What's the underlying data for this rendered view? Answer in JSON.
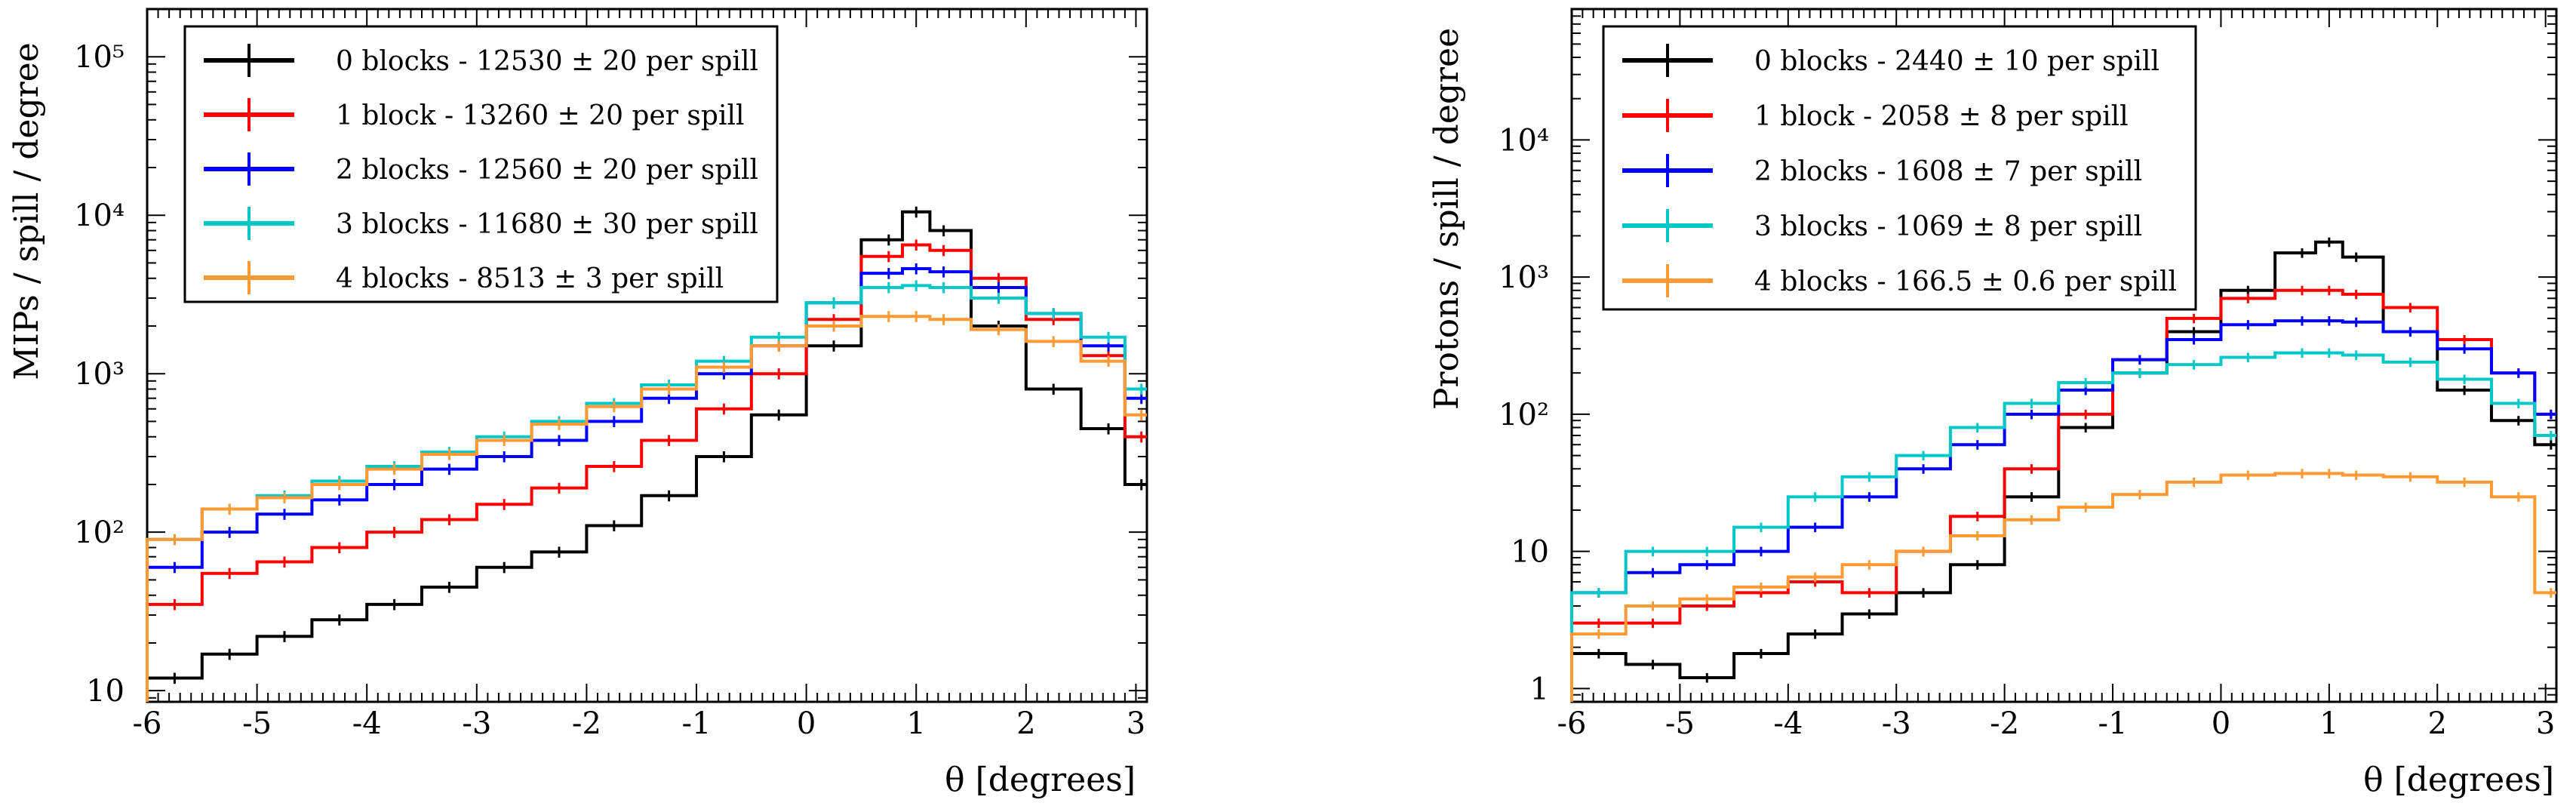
{
  "chart_data": [
    {
      "type": "line",
      "style": "step-histogram",
      "title": "",
      "xlabel": "θ [degrees]",
      "ylabel": "MIPs / spill / degree",
      "xlim": [
        -6,
        3.1
      ],
      "ylim": [
        8.5,
        200000
      ],
      "yscale": "log",
      "x_ticks": [
        -6,
        -5,
        -4,
        -3,
        -2,
        -1,
        0,
        1,
        2,
        3
      ],
      "y_ticks": [
        {
          "value": 10,
          "label": "10"
        },
        {
          "value": 100,
          "label": "10²"
        },
        {
          "value": 1000,
          "label": "10³"
        },
        {
          "value": 10000,
          "label": "10⁴"
        },
        {
          "value": 100000,
          "label": "10⁵"
        }
      ],
      "grid": false,
      "legend_position": "top-left",
      "x": [
        -5.75,
        -5.25,
        -4.75,
        -4.25,
        -3.75,
        -3.25,
        -2.75,
        -2.25,
        -1.75,
        -1.25,
        -0.75,
        -0.25,
        0.25,
        0.75,
        1.0,
        1.25,
        1.75,
        2.25,
        2.75,
        3.05
      ],
      "series": [
        {
          "name": "0 blocks - 12530 ± 20 per spill",
          "color": "#000000",
          "values": [
            12,
            17,
            22,
            28,
            35,
            45,
            60,
            75,
            110,
            170,
            300,
            550,
            1500,
            7000,
            10500,
            8000,
            2000,
            800,
            450,
            200
          ]
        },
        {
          "name": "1 block - 13260 ± 20 per spill",
          "color": "#ff0000",
          "values": [
            35,
            55,
            65,
            80,
            100,
            120,
            150,
            190,
            260,
            380,
            600,
            1000,
            2200,
            5500,
            6500,
            6000,
            4000,
            2200,
            1300,
            400
          ]
        },
        {
          "name": "2 blocks - 12560 ± 20 per spill",
          "color": "#0000ff",
          "values": [
            60,
            100,
            130,
            160,
            200,
            250,
            300,
            380,
            500,
            700,
            1000,
            1500,
            2800,
            4300,
            4600,
            4400,
            3500,
            2400,
            1500,
            700
          ]
        },
        {
          "name": "3 blocks - 11680 ± 30 per spill",
          "color": "#00c8c8",
          "values": [
            90,
            140,
            170,
            210,
            260,
            320,
            400,
            500,
            650,
            850,
            1200,
            1700,
            2800,
            3500,
            3600,
            3500,
            3000,
            2400,
            1700,
            800
          ]
        },
        {
          "name": "4 blocks - 8513 ± 3 per spill",
          "color": "#ff9933",
          "values": [
            90,
            140,
            165,
            200,
            250,
            310,
            380,
            480,
            620,
            800,
            1100,
            1500,
            2000,
            2300,
            2300,
            2200,
            1900,
            1600,
            1200,
            550
          ]
        }
      ]
    },
    {
      "type": "line",
      "style": "step-histogram",
      "title": "",
      "xlabel": "θ [degrees]",
      "ylabel": "Protons / spill / degree",
      "xlim": [
        -6,
        3.1
      ],
      "ylim": [
        0.8,
        90000
      ],
      "yscale": "log",
      "x_ticks": [
        -6,
        -5,
        -4,
        -3,
        -2,
        -1,
        0,
        1,
        2,
        3
      ],
      "y_ticks": [
        {
          "value": 1,
          "label": "1"
        },
        {
          "value": 10,
          "label": "10"
        },
        {
          "value": 100,
          "label": "10²"
        },
        {
          "value": 1000,
          "label": "10³"
        },
        {
          "value": 10000,
          "label": "10⁴"
        }
      ],
      "grid": false,
      "legend_position": "top-left",
      "x": [
        -5.75,
        -5.25,
        -4.75,
        -4.25,
        -3.75,
        -3.25,
        -2.75,
        -2.25,
        -1.75,
        -1.25,
        -0.75,
        -0.25,
        0.25,
        0.75,
        1.0,
        1.25,
        1.75,
        2.25,
        2.75,
        3.05
      ],
      "series": [
        {
          "name": "0 blocks - 2440 ± 10 per spill",
          "color": "#000000",
          "values": [
            1.8,
            1.5,
            1.2,
            1.8,
            2.5,
            3.5,
            5,
            8,
            25,
            80,
            200,
            400,
            800,
            1500,
            1800,
            1400,
            400,
            150,
            90,
            60
          ]
        },
        {
          "name": "1 block - 2058 ± 8 per spill",
          "color": "#ff0000",
          "values": [
            3,
            3,
            4,
            5,
            6,
            5,
            10,
            18,
            40,
            100,
            250,
            500,
            700,
            800,
            800,
            750,
            600,
            350,
            200,
            100
          ]
        },
        {
          "name": "2 blocks - 1608 ± 7 per spill",
          "color": "#0000ff",
          "values": [
            5,
            7,
            8,
            10,
            15,
            25,
            40,
            60,
            100,
            150,
            250,
            350,
            450,
            480,
            480,
            470,
            400,
            300,
            200,
            100
          ]
        },
        {
          "name": "3 blocks - 1069 ± 8 per spill",
          "color": "#00c8c8",
          "values": [
            5,
            10,
            10,
            15,
            25,
            35,
            50,
            80,
            120,
            170,
            200,
            230,
            260,
            280,
            280,
            270,
            240,
            180,
            120,
            70
          ]
        },
        {
          "name": "4 blocks - 166.5 ± 0.6 per spill",
          "color": "#ff9933",
          "values": [
            2.5,
            4,
            4.5,
            5.5,
            6.5,
            8,
            10,
            13,
            17,
            21,
            26,
            32,
            36,
            37,
            37,
            36,
            35,
            32,
            25,
            5
          ]
        }
      ]
    }
  ]
}
